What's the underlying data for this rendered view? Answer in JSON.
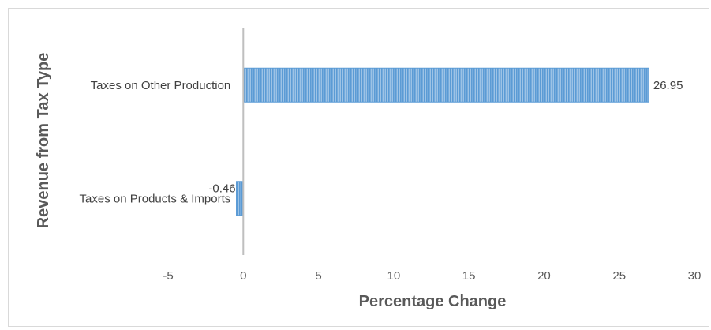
{
  "chart_data": {
    "type": "bar",
    "orientation": "horizontal",
    "categories": [
      "Taxes on Other Production",
      "Taxes on Products & Imports"
    ],
    "values": [
      26.95,
      -0.46
    ],
    "data_labels": [
      "26.95",
      "-0.46"
    ],
    "xlabel": "Percentage Change",
    "ylabel": "Revenue from Tax Type",
    "xlim": [
      -5,
      30
    ],
    "xticks": [
      -5,
      0,
      5,
      10,
      15,
      20,
      25,
      30
    ],
    "grid": false,
    "legend": "none",
    "bar_color": "#5b9bd5",
    "bar_pattern": "vertical-stripes"
  }
}
